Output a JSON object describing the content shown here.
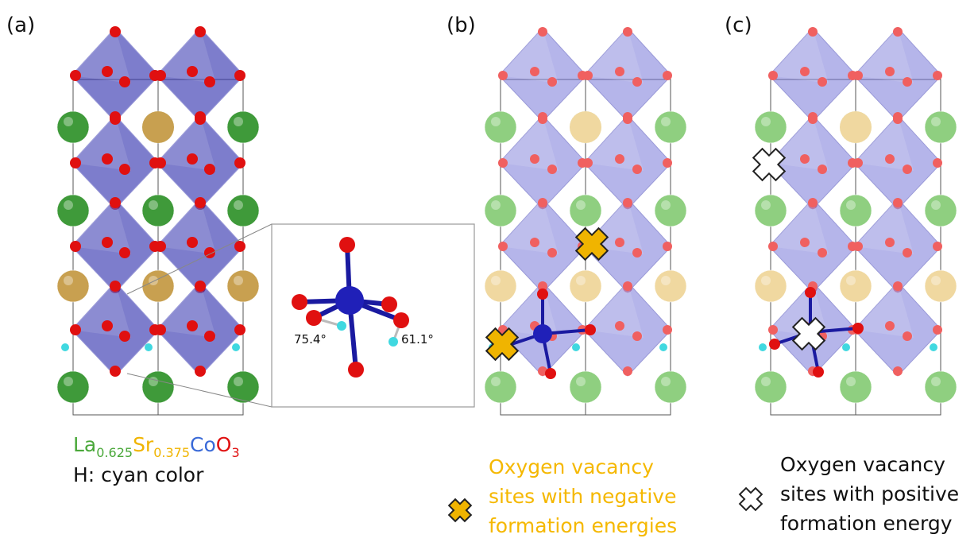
{
  "panels": [
    {
      "label": "(a)"
    },
    {
      "label": "(b)"
    },
    {
      "label": "(c)"
    }
  ],
  "formula": {
    "la": "La",
    "la_sub": "0.625",
    "sr": "Sr",
    "sr_sub": "0.375",
    "co": "Co",
    "o": "O",
    "o_sub": "3"
  },
  "h_note": "H: cyan color",
  "inset": {
    "angles": [
      "75.4°",
      "61.1°"
    ]
  },
  "legend": [
    {
      "lines": [
        "Oxygen vacancy",
        "sites with negative",
        "formation energies"
      ]
    },
    {
      "lines": [
        "Oxygen vacancy",
        "sites with positive",
        "formation energy"
      ]
    }
  ]
}
